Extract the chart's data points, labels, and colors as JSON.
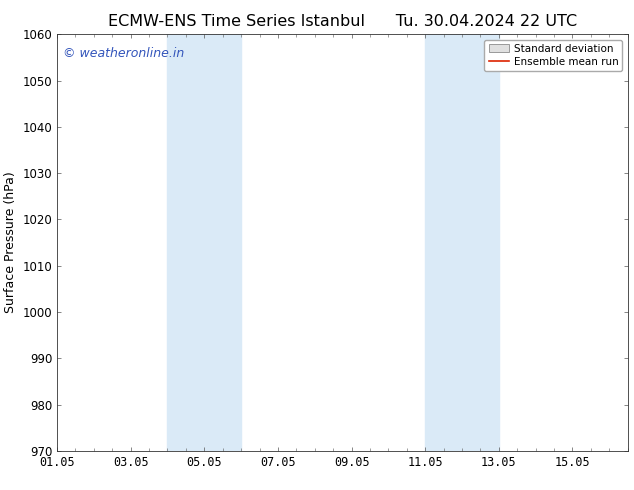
{
  "title_left": "ECMW-ENS Time Series Istanbul",
  "title_right": "Tu. 30.04.2024 22 UTC",
  "ylabel": "Surface Pressure (hPa)",
  "ylim": [
    970,
    1060
  ],
  "yticks": [
    970,
    980,
    990,
    1000,
    1010,
    1020,
    1030,
    1040,
    1050,
    1060
  ],
  "xtick_labels": [
    "01.05",
    "03.05",
    "05.05",
    "07.05",
    "09.05",
    "11.05",
    "13.05",
    "15.05"
  ],
  "xtick_positions": [
    0,
    2,
    4,
    6,
    8,
    10,
    12,
    14
  ],
  "xlim": [
    0,
    15.5
  ],
  "shaded_regions": [
    {
      "x_start": 3.0,
      "x_end": 5.0,
      "color": "#daeaf7"
    },
    {
      "x_start": 10.0,
      "x_end": 12.0,
      "color": "#daeaf7"
    }
  ],
  "watermark_text": "© weatheronline.in",
  "watermark_color": "#3355bb",
  "legend_std_label": "Standard deviation",
  "legend_mean_label": "Ensemble mean run",
  "legend_std_facecolor": "#e0e0e0",
  "legend_std_edgecolor": "#999999",
  "legend_mean_color": "#dd2200",
  "bg_color": "#ffffff",
  "plot_bg_color": "#ffffff",
  "title_fontsize": 11.5,
  "ylabel_fontsize": 9,
  "tick_fontsize": 8.5,
  "watermark_fontsize": 9,
  "legend_fontsize": 7.5
}
